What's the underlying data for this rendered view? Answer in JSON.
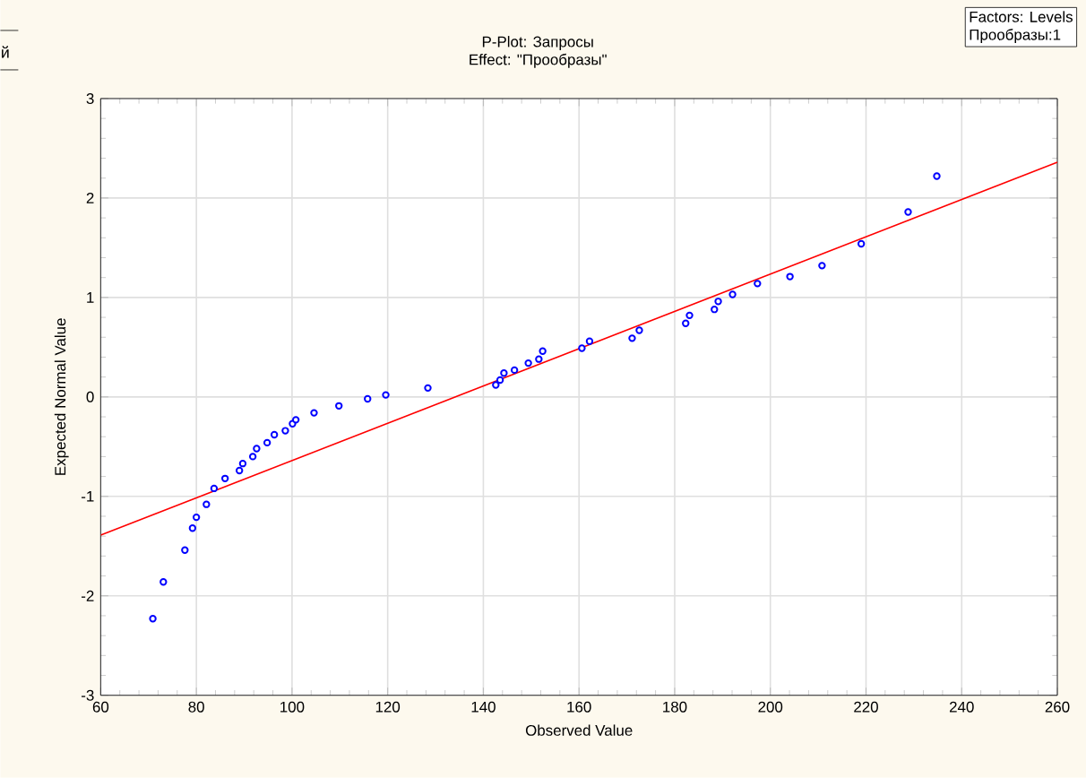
{
  "chart_data": {
    "type": "scatter",
    "title": "P-Plot: Запросы",
    "subtitle": "Effect: \"Прообразы\"",
    "xlabel": "Observed Value",
    "ylabel": "Expected Normal Value",
    "annotations": [
      "Factors: Levels",
      "Прообразы:1",
      "й"
    ],
    "xlim": [
      60,
      260
    ],
    "ylim": [
      -3,
      3
    ],
    "xticks": [
      60,
      80,
      100,
      120,
      140,
      160,
      180,
      200,
      220,
      240,
      260
    ],
    "yticks": [
      -3,
      -2,
      -1,
      0,
      1,
      2,
      3
    ],
    "grid": true,
    "series": [
      {
        "marker": "circle",
        "color": "#0000ff",
        "x": [
          70.9,
          73.1,
          77.6,
          79.2,
          80.0,
          82.1,
          83.7,
          86.0,
          89.0,
          89.7,
          91.8,
          92.6,
          94.8,
          96.3,
          98.6,
          100.1,
          100.8,
          104.6,
          109.8,
          115.8,
          119.6,
          128.4,
          142.6,
          143.5,
          144.3,
          146.5,
          149.4,
          151.6,
          152.4,
          160.6,
          162.2,
          171.1,
          172.6,
          182.3,
          183.1,
          188.3,
          189.1,
          192.1,
          197.3,
          204.1,
          210.8,
          219.0,
          228.8,
          234.8
        ],
        "values": [
          -2.23,
          -1.86,
          -1.54,
          -1.32,
          -1.21,
          -1.08,
          -0.92,
          -0.82,
          -0.74,
          -0.67,
          -0.6,
          -0.52,
          -0.46,
          -0.38,
          -0.34,
          -0.27,
          -0.23,
          -0.16,
          -0.09,
          -0.02,
          0.02,
          0.09,
          0.12,
          0.17,
          0.24,
          0.27,
          0.34,
          0.38,
          0.46,
          0.49,
          0.56,
          0.59,
          0.67,
          0.74,
          0.82,
          0.88,
          0.96,
          1.03,
          1.14,
          1.21,
          1.32,
          1.54,
          1.86,
          2.22
        ]
      },
      {
        "type": "line",
        "marker": "none",
        "color": "#ff0000",
        "x": [
          60,
          260
        ],
        "values": [
          -1.39,
          2.36
        ]
      }
    ]
  }
}
